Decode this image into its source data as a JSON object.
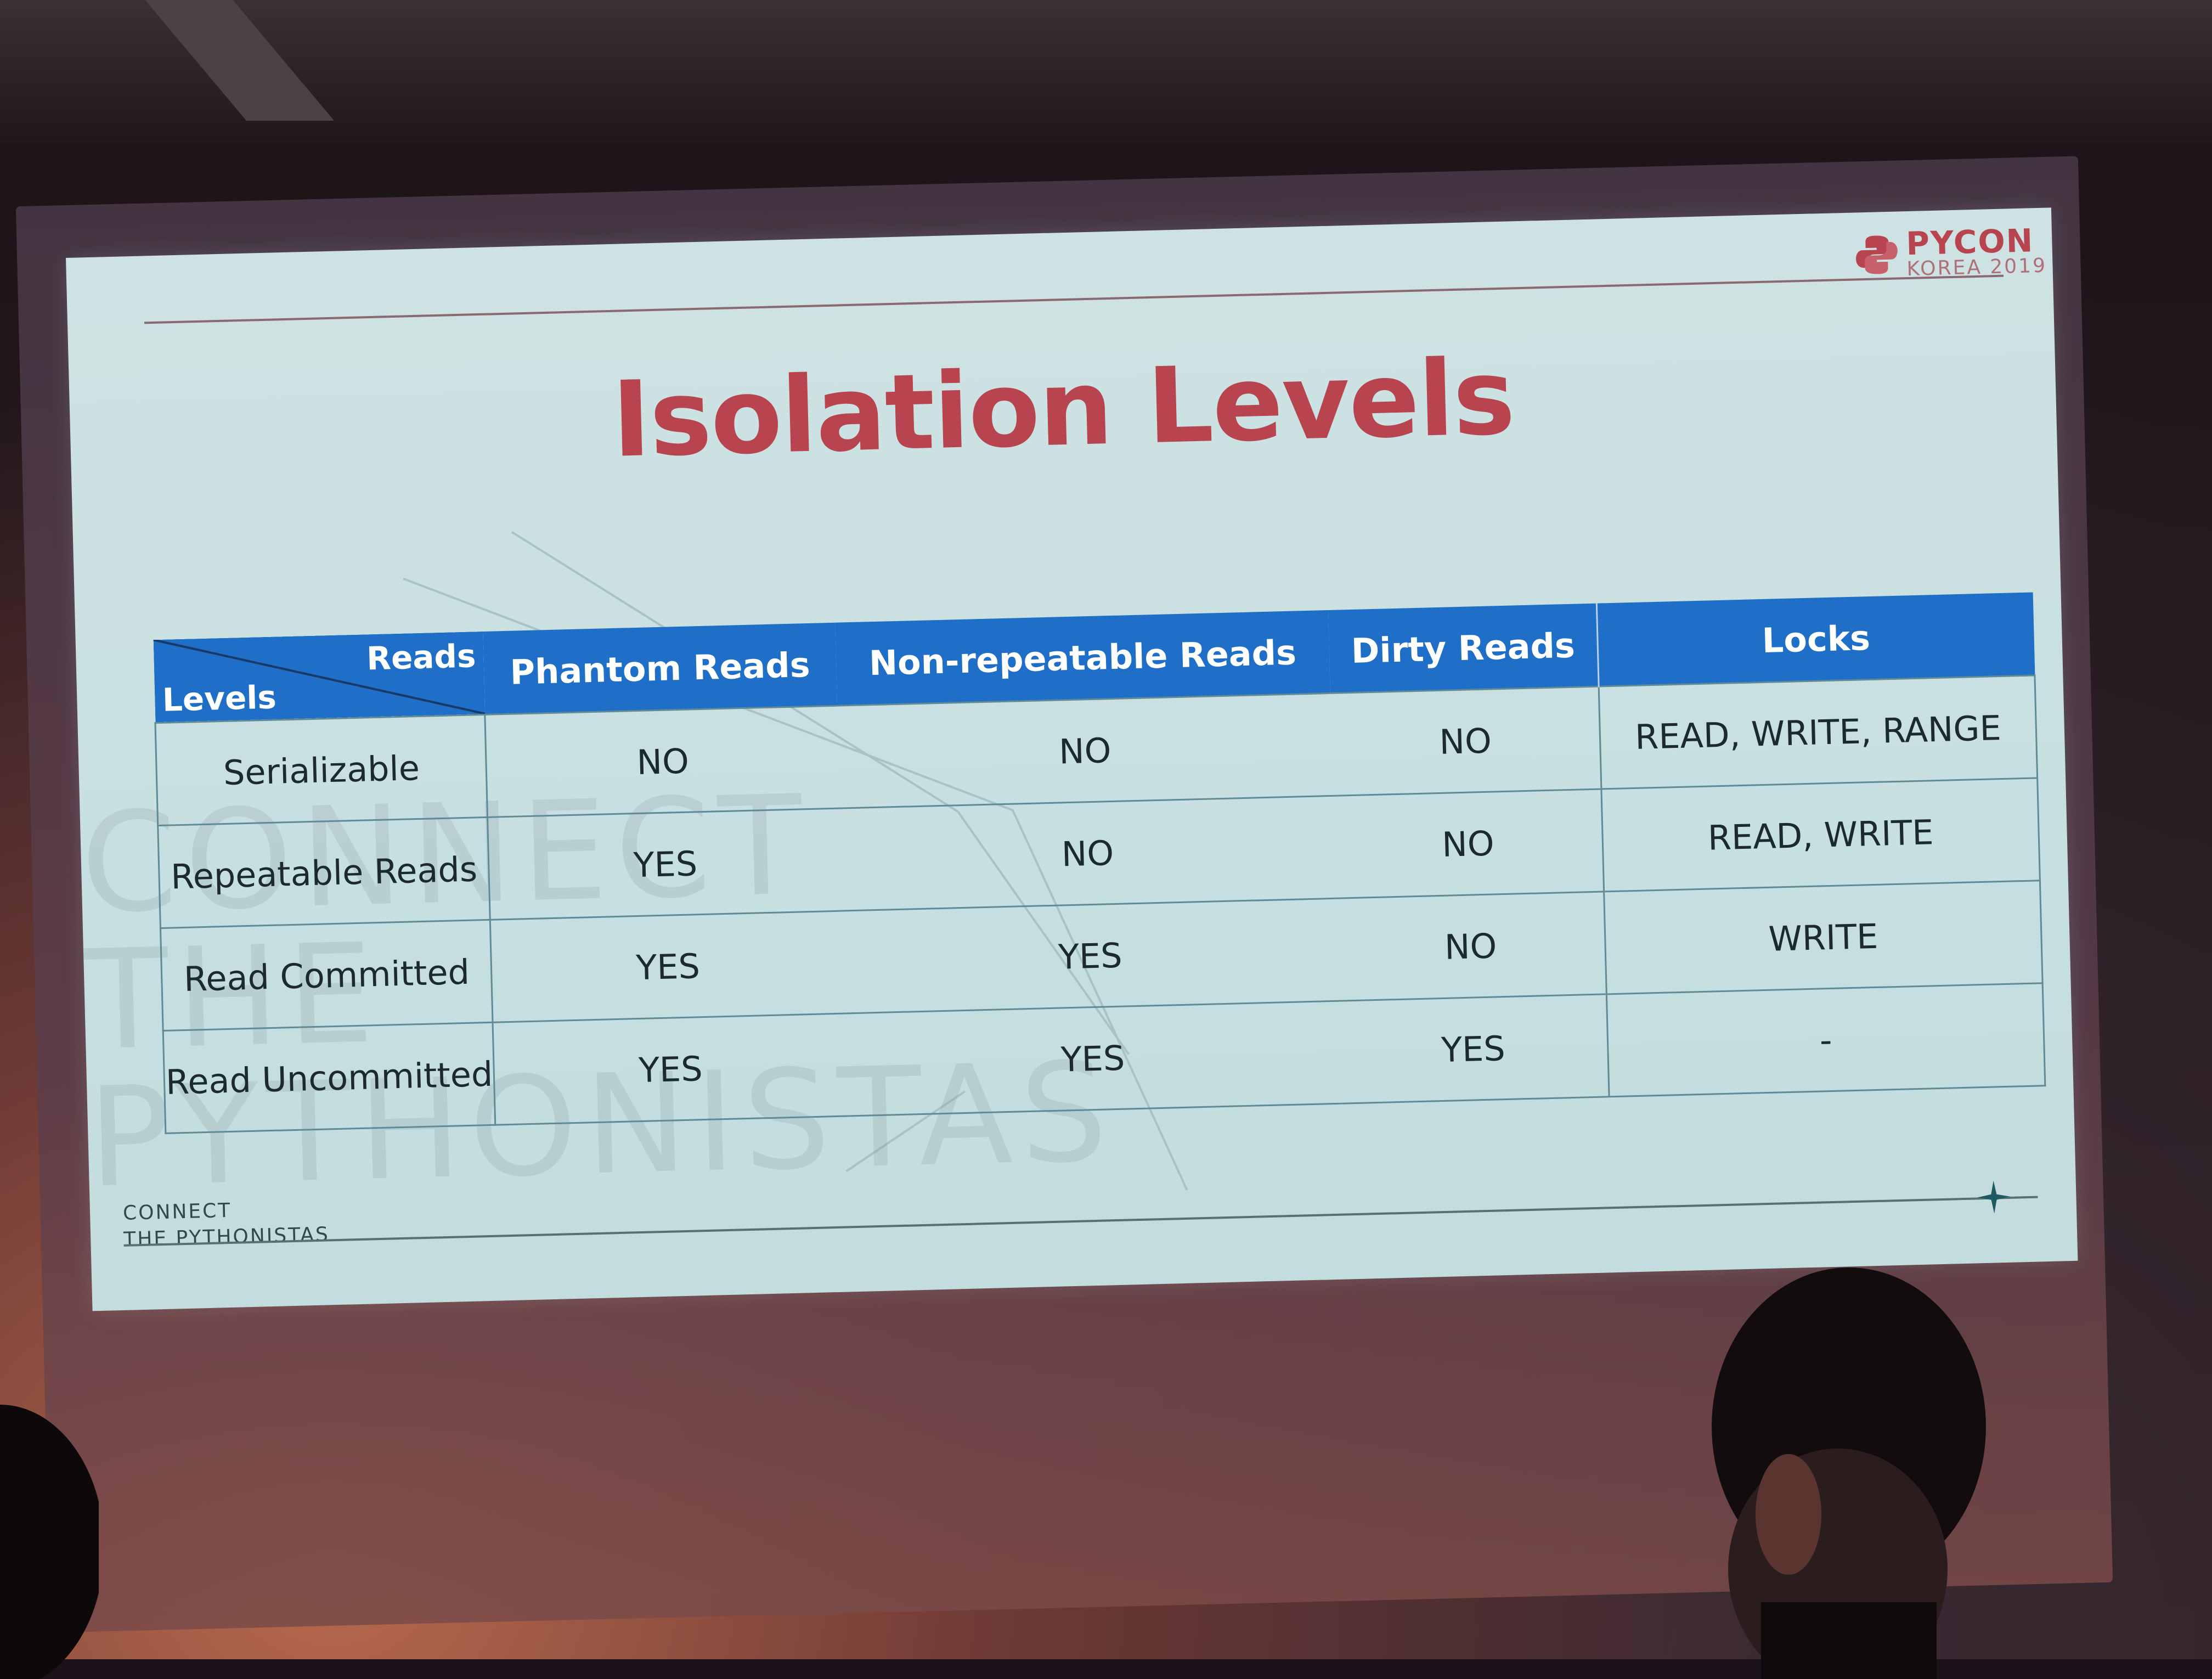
{
  "logo": {
    "title": "PYCON",
    "subtitle": "KOREA 2019"
  },
  "slide_title": "Isolation Levels",
  "watermark": [
    "CONNECT",
    "THE",
    "PYTHONISTAS"
  ],
  "footer": [
    "CONNECT",
    "THE PYTHONISTAS"
  ],
  "table": {
    "corner_top": "Reads",
    "corner_bottom": "Levels",
    "headers": [
      "Phantom Reads",
      "Non-repeatable Reads",
      "Dirty Reads",
      "Locks"
    ],
    "rows": [
      {
        "level": "Serializable",
        "phantom": "NO",
        "nonrepeatable": "NO",
        "dirty": "NO",
        "locks": "READ, WRITE, RANGE"
      },
      {
        "level": "Repeatable Reads",
        "phantom": "YES",
        "nonrepeatable": "NO",
        "dirty": "NO",
        "locks": "READ, WRITE"
      },
      {
        "level": "Read Committed",
        "phantom": "YES",
        "nonrepeatable": "YES",
        "dirty": "NO",
        "locks": "WRITE"
      },
      {
        "level": "Read Uncommitted",
        "phantom": "YES",
        "nonrepeatable": "YES",
        "dirty": "YES",
        "locks": "-"
      }
    ]
  },
  "colors": {
    "title_red": "#b84450",
    "header_blue": "#1f6fc8",
    "slide_bg": "#cfe2e3"
  }
}
